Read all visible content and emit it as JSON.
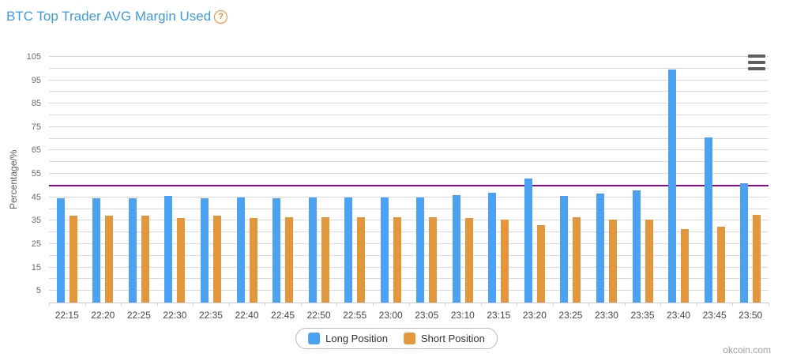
{
  "page": {
    "title": "BTC Top Trader AVG Margin Used",
    "help_icon": "?",
    "watermark": "okcoin.com"
  },
  "chart_data": {
    "type": "bar",
    "title": "BTC Top Trader AVG Margin Used",
    "xlabel": "",
    "ylabel": "Percentage/%",
    "ylim": [
      0,
      105
    ],
    "y_tick_labels": [
      5,
      15,
      25,
      35,
      45,
      55,
      65,
      75,
      85,
      95,
      105
    ],
    "gridline_interval": 5,
    "grid": true,
    "legend_position": "bottom",
    "plotline": {
      "value": 50,
      "color": "#8a0b8a"
    },
    "categories": [
      "22:15",
      "22:20",
      "22:25",
      "22:30",
      "22:35",
      "22:40",
      "22:45",
      "22:50",
      "22:55",
      "23:00",
      "23:05",
      "23:10",
      "23:15",
      "23:20",
      "23:25",
      "23:30",
      "23:35",
      "23:40",
      "23:45",
      "23:50"
    ],
    "series": [
      {
        "name": "Long Position",
        "color": "#4ba1f2",
        "values": [
          44.5,
          44.5,
          44.5,
          45.5,
          44.5,
          45.0,
          44.5,
          45.0,
          45.0,
          45.0,
          45.0,
          46.0,
          47.0,
          53.0,
          45.5,
          46.5,
          48.0,
          99.5,
          70.5,
          51.0
        ]
      },
      {
        "name": "Short Position",
        "color": "#e3973c",
        "values": [
          37.0,
          37.0,
          37.0,
          36.0,
          37.0,
          36.0,
          36.5,
          36.5,
          36.5,
          36.5,
          36.5,
          36.0,
          35.5,
          33.0,
          36.5,
          35.5,
          35.5,
          31.5,
          32.5,
          37.5
        ]
      }
    ]
  },
  "colors": {
    "title": "#3f9bdf",
    "help_icon": "#f0882b",
    "gridline": "#d9d9d9",
    "axis_line": "#c4ccd2",
    "plotline": "#8a0b8a"
  }
}
